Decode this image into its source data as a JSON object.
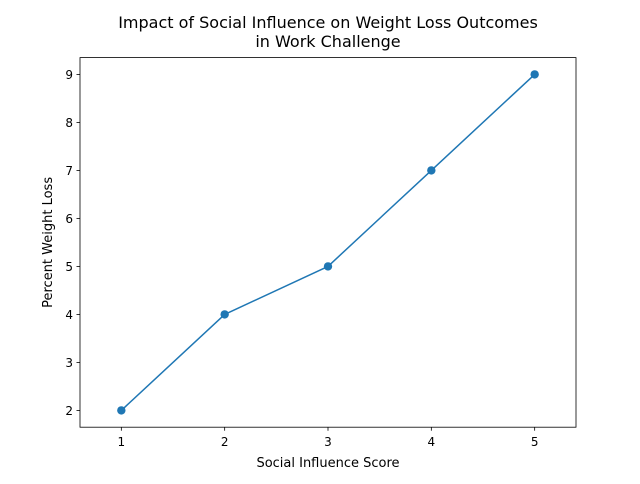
{
  "chart_data": {
    "type": "line",
    "title": "Impact of Social Influence on Weight Loss Outcomes\nin Work Challenge",
    "xlabel": "Social Influence Score",
    "ylabel": "Percent Weight Loss",
    "x": [
      1,
      2,
      3,
      4,
      5
    ],
    "y": [
      2,
      4,
      5,
      7,
      9
    ],
    "xticks": [
      1,
      2,
      3,
      4,
      5
    ],
    "yticks": [
      2,
      3,
      4,
      5,
      6,
      7,
      8,
      9
    ],
    "xlim": [
      0.6,
      5.4
    ],
    "ylim": [
      1.65,
      9.35
    ],
    "grid": false,
    "marker": "circle",
    "colors": {
      "series": "#1f77b4",
      "axis": "#000000"
    }
  }
}
